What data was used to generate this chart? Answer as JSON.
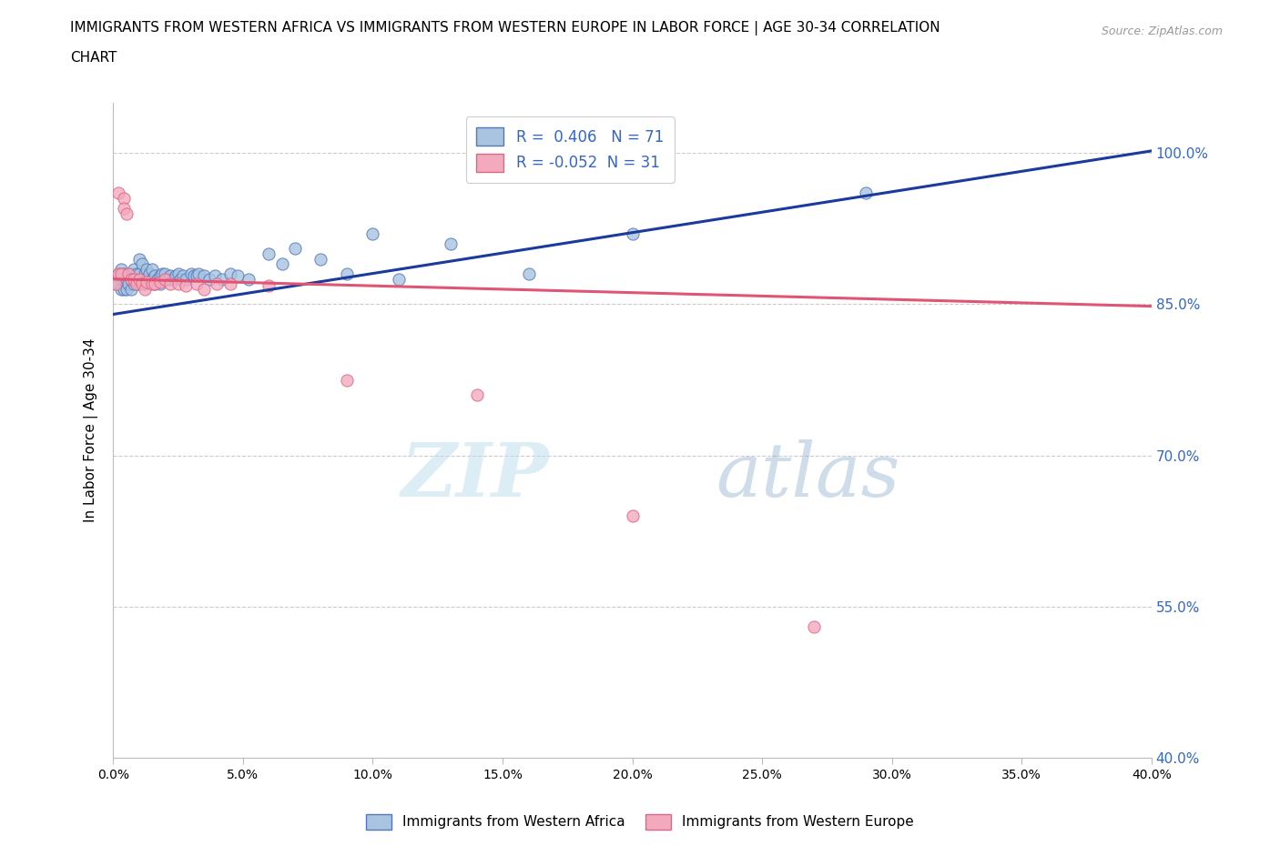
{
  "title_line1": "IMMIGRANTS FROM WESTERN AFRICA VS IMMIGRANTS FROM WESTERN EUROPE IN LABOR FORCE | AGE 30-34 CORRELATION",
  "title_line2": "CHART",
  "source_text": "Source: ZipAtlas.com",
  "ylabel": "In Labor Force | Age 30-34",
  "blue_R": 0.406,
  "blue_N": 71,
  "pink_R": -0.052,
  "pink_N": 31,
  "blue_label": "Immigrants from Western Africa",
  "pink_label": "Immigrants from Western Europe",
  "blue_color": "#A8C4E0",
  "pink_color": "#F4AABD",
  "blue_edge_color": "#5577BB",
  "pink_edge_color": "#DD6688",
  "blue_line_color": "#1A3A9C",
  "pink_line_color": "#E05575",
  "axis_label_color": "#3366CC",
  "xlim": [
    0.0,
    0.4
  ],
  "ylim": [
    0.4,
    1.05
  ],
  "yticks": [
    0.4,
    0.55,
    0.7,
    0.85,
    1.0
  ],
  "xticks": [
    0.0,
    0.05,
    0.1,
    0.15,
    0.2,
    0.25,
    0.3,
    0.35,
    0.4
  ],
  "blue_scatter_x": [
    0.001,
    0.002,
    0.002,
    0.003,
    0.003,
    0.003,
    0.004,
    0.004,
    0.004,
    0.005,
    0.005,
    0.005,
    0.006,
    0.006,
    0.007,
    0.007,
    0.007,
    0.008,
    0.008,
    0.009,
    0.009,
    0.01,
    0.01,
    0.01,
    0.011,
    0.011,
    0.012,
    0.012,
    0.013,
    0.013,
    0.014,
    0.014,
    0.015,
    0.015,
    0.016,
    0.016,
    0.017,
    0.018,
    0.018,
    0.019,
    0.02,
    0.021,
    0.022,
    0.023,
    0.024,
    0.025,
    0.026,
    0.027,
    0.028,
    0.03,
    0.031,
    0.032,
    0.033,
    0.035,
    0.037,
    0.039,
    0.042,
    0.045,
    0.048,
    0.052,
    0.06,
    0.065,
    0.07,
    0.08,
    0.09,
    0.1,
    0.11,
    0.13,
    0.16,
    0.2,
    0.29
  ],
  "blue_scatter_y": [
    0.87,
    0.88,
    0.87,
    0.875,
    0.865,
    0.885,
    0.88,
    0.875,
    0.865,
    0.87,
    0.875,
    0.865,
    0.88,
    0.87,
    0.88,
    0.875,
    0.865,
    0.885,
    0.87,
    0.88,
    0.875,
    0.895,
    0.88,
    0.87,
    0.89,
    0.875,
    0.88,
    0.87,
    0.885,
    0.875,
    0.88,
    0.872,
    0.875,
    0.885,
    0.878,
    0.87,
    0.875,
    0.878,
    0.87,
    0.88,
    0.88,
    0.875,
    0.878,
    0.875,
    0.878,
    0.88,
    0.875,
    0.878,
    0.875,
    0.88,
    0.878,
    0.878,
    0.88,
    0.878,
    0.875,
    0.878,
    0.875,
    0.88,
    0.878,
    0.875,
    0.9,
    0.89,
    0.905,
    0.895,
    0.88,
    0.92,
    0.875,
    0.91,
    0.88,
    0.92,
    0.96
  ],
  "pink_scatter_x": [
    0.001,
    0.002,
    0.002,
    0.003,
    0.004,
    0.004,
    0.005,
    0.006,
    0.007,
    0.008,
    0.009,
    0.01,
    0.011,
    0.012,
    0.013,
    0.015,
    0.016,
    0.018,
    0.02,
    0.022,
    0.025,
    0.028,
    0.032,
    0.035,
    0.04,
    0.045,
    0.06,
    0.09,
    0.14,
    0.2,
    0.27
  ],
  "pink_scatter_y": [
    0.87,
    0.88,
    0.96,
    0.88,
    0.955,
    0.945,
    0.94,
    0.88,
    0.875,
    0.875,
    0.87,
    0.875,
    0.87,
    0.865,
    0.872,
    0.87,
    0.87,
    0.872,
    0.875,
    0.87,
    0.87,
    0.868,
    0.87,
    0.865,
    0.87,
    0.87,
    0.868,
    0.775,
    0.76,
    0.64,
    0.53
  ],
  "blue_trendline_x": [
    0.0,
    0.4
  ],
  "blue_trendline_y": [
    0.84,
    1.002
  ],
  "pink_trendline_x": [
    0.0,
    0.4
  ],
  "pink_trendline_y": [
    0.875,
    0.848
  ]
}
